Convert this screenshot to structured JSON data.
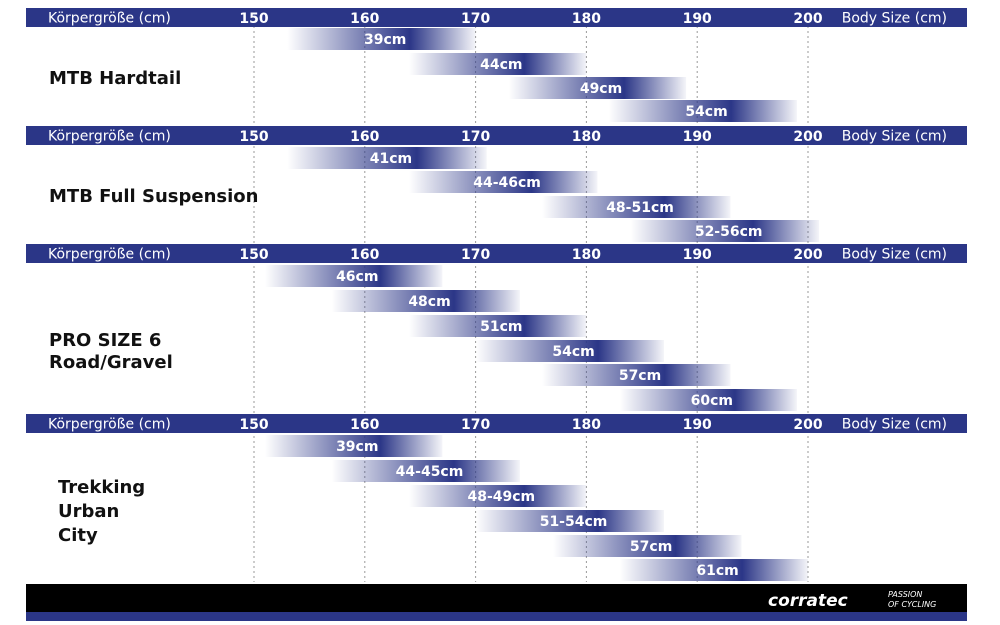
{
  "brand": {
    "logo": "corratec",
    "tagline_line1": "PASSION",
    "tagline_line2": "OF CYCLING",
    "colors": {
      "header": "#2b3687",
      "bar": "#2b3687",
      "footer": "#000000"
    }
  },
  "chart_data": {
    "type": "bar",
    "axis": {
      "left_label": "Körpergröße (cm)",
      "right_label": "Body Size (cm)",
      "ticks": [
        "150",
        "160",
        "170",
        "180",
        "190",
        "200"
      ],
      "xlim": [
        150,
        200
      ],
      "grid": true
    },
    "sections": [
      {
        "label_lines": [
          "MTB Hardtail"
        ],
        "bars": [
          {
            "label": "39cm",
            "from": 153,
            "to": 170
          },
          {
            "label": "44cm",
            "from": 164,
            "to": 180
          },
          {
            "label": "49cm",
            "from": 173,
            "to": 189
          },
          {
            "label": "54cm",
            "from": 182,
            "to": 199
          }
        ]
      },
      {
        "label_lines": [
          "MTB Full Suspension"
        ],
        "bars": [
          {
            "label": "41cm",
            "from": 153,
            "to": 171
          },
          {
            "label": "44-46cm",
            "from": 164,
            "to": 181
          },
          {
            "label": "48-51cm",
            "from": 176,
            "to": 193
          },
          {
            "label": "52-56cm",
            "from": 184,
            "to": 201
          }
        ]
      },
      {
        "label_lines": [
          "PRO SIZE 6",
          "Road/Gravel"
        ],
        "bars": [
          {
            "label": "46cm",
            "from": 151,
            "to": 167
          },
          {
            "label": "48cm",
            "from": 157,
            "to": 174
          },
          {
            "label": "51cm",
            "from": 164,
            "to": 180
          },
          {
            "label": "54cm",
            "from": 170,
            "to": 187
          },
          {
            "label": "57cm",
            "from": 176,
            "to": 193
          },
          {
            "label": "60cm",
            "from": 183,
            "to": 199
          }
        ]
      },
      {
        "label_lines": [
          "Trekking",
          "Urban",
          "City"
        ],
        "bars": [
          {
            "label": "39cm",
            "from": 151,
            "to": 167
          },
          {
            "label": "44-45cm",
            "from": 157,
            "to": 174
          },
          {
            "label": "48-49cm",
            "from": 164,
            "to": 180
          },
          {
            "label": "51-54cm",
            "from": 170,
            "to": 187
          },
          {
            "label": "57cm",
            "from": 177,
            "to": 194
          },
          {
            "label": "61cm",
            "from": 183,
            "to": 200
          }
        ]
      }
    ]
  }
}
